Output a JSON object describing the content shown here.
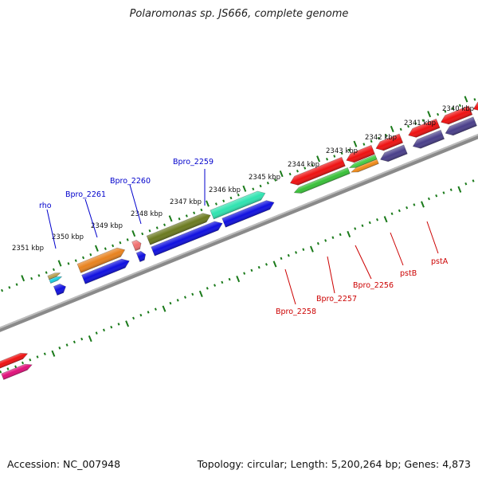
{
  "title": "Polaromonas sp. JS666, complete genome",
  "accession": "Accession: NC_007948",
  "summary": "Topology: circular; Length: 5,200,264 bp; Genes: 4,873",
  "colors": {
    "forward_label": "#0000cc",
    "reverse_label": "#cc0000",
    "scale_ticks": "#1a7a1a",
    "backbone": "#888888"
  },
  "scale": {
    "labels": [
      "2340 kbp",
      "2341 kbp",
      "2342 kbp",
      "2343 kbp",
      "2344 kbp",
      "2345 kbp",
      "2346 kbp",
      "2347 kbp",
      "2348 kbp",
      "2349 kbp",
      "2350 kbp",
      "2351 kbp"
    ]
  },
  "genes": {
    "forward": [
      "Bpro_2259",
      "Bpro_2260",
      "Bpro_2261",
      "rho"
    ],
    "reverse": [
      "Bpro_2258",
      "Bpro_2257",
      "Bpro_2256",
      "pstB",
      "pstA"
    ]
  }
}
